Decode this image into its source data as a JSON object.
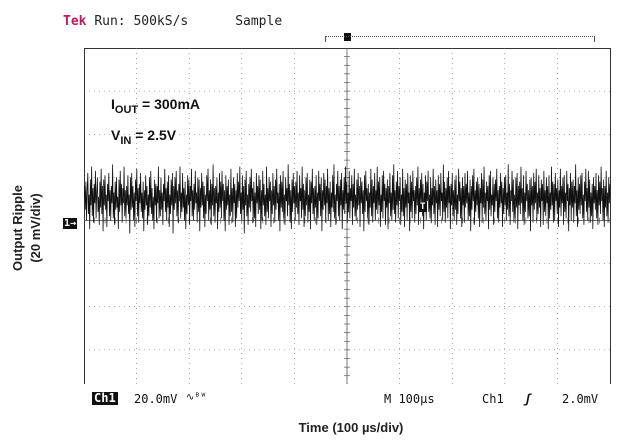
{
  "header": {
    "brand": "Tek",
    "run": "Run: 500kS/s",
    "mode": "Sample"
  },
  "annotations": {
    "iout_label": "I",
    "iout_sub": "OUT",
    "iout_value": " = 300mA",
    "vin_label": "V",
    "vin_sub": "IN",
    "vin_value": " = 2.5V"
  },
  "status": {
    "ch_tag": "Ch1",
    "ch_scale": "20.0mV",
    "bw": "∿ᴮᵂ",
    "timebase": "M 100µs",
    "trig_src": "Ch1",
    "trig_slope": "ʃ",
    "trig_level": "2.0mV"
  },
  "markers": {
    "ch_marker": "1→",
    "trigger_marker": "T"
  },
  "chart_data": {
    "type": "line",
    "xlabel": "Time (100 µs/div)",
    "ylabel_line1": "Output Ripple",
    "ylabel_line2": "(20 mV/div)",
    "x_divisions": 10,
    "y_divisions": 8,
    "x_range_us": [
      0,
      1000
    ],
    "y_range_mV": [
      -80,
      80
    ],
    "offset_divisions": 0.5,
    "series": [
      {
        "values": [
          0,
          6,
          -5,
          8,
          -10,
          4,
          12,
          -7,
          2,
          -14,
          9,
          -3,
          15,
          -8,
          5,
          -11,
          7,
          -2,
          13,
          -9,
          3,
          10,
          -6,
          1,
          -12,
          8,
          -4,
          14,
          -7,
          6,
          -15,
          9,
          -3,
          11,
          -5,
          2,
          -13,
          7,
          -1,
          12,
          -8,
          4,
          -10,
          6,
          -2,
          16,
          -9,
          3,
          -12,
          8,
          -5,
          10,
          -4,
          1,
          -14,
          9,
          -6,
          13,
          -3,
          7,
          -11,
          5,
          -2,
          15,
          -8,
          4,
          -9,
          6,
          -3,
          11,
          -7,
          2,
          -16,
          10,
          -5,
          12,
          -4,
          6,
          -10,
          3,
          -13,
          9,
          -1,
          14,
          -8,
          5,
          -11,
          7,
          -2,
          12,
          -6,
          3,
          -9,
          8,
          -15,
          4,
          -5,
          11,
          -3,
          6,
          -12,
          2,
          -8,
          10,
          -4,
          13,
          -7,
          5,
          -10,
          1,
          -14,
          9,
          -3,
          7,
          -11,
          6,
          -2,
          15,
          -9,
          4,
          -8,
          10,
          -5,
          3,
          -12,
          7,
          -1,
          14,
          -6,
          5,
          -10,
          8,
          -4,
          11,
          -13,
          2,
          -7,
          9,
          -3,
          12,
          -16,
          6,
          -5,
          10,
          -2,
          13,
          -8,
          4,
          -11,
          7,
          -1,
          15,
          -9,
          3,
          -6,
          12,
          -4,
          5,
          -10,
          8,
          -14,
          2,
          -7,
          11,
          -3,
          9,
          -12,
          6,
          -1,
          14,
          -8,
          4,
          -10,
          7,
          -5,
          13,
          -2,
          3,
          -11,
          10,
          -6,
          9,
          -15,
          5,
          -4,
          12,
          -3,
          8,
          -9,
          6,
          -13,
          2,
          -7,
          11,
          -1,
          14,
          -10,
          4,
          -5,
          9,
          -12,
          7,
          -3,
          16,
          -8,
          5,
          -11,
          6,
          -2,
          10,
          -14,
          3,
          -6,
          12,
          -4,
          8,
          -9,
          13,
          -1,
          7,
          -10,
          4,
          -15,
          11,
          -5,
          6,
          -3,
          9,
          -12,
          2,
          -8,
          14,
          -6,
          5,
          -11,
          10,
          -2,
          7,
          -13,
          4,
          -9,
          12,
          -4,
          8,
          -1,
          15,
          -7,
          3,
          -10,
          11,
          -5,
          6,
          -16,
          9,
          -3,
          13,
          -8,
          2,
          -12,
          7,
          -4,
          10,
          -6,
          14,
          -1,
          5,
          -11,
          8,
          -9,
          3,
          -13,
          12,
          -2,
          6,
          -7,
          11,
          -5,
          9,
          -14,
          4,
          -10,
          13,
          -3,
          7,
          -8,
          2,
          -12,
          15,
          -6,
          5,
          -9,
          10,
          -1,
          8,
          -13,
          4,
          -7,
          12,
          -3,
          6,
          -11,
          9,
          -5,
          14,
          -2,
          3,
          -10,
          7,
          -15,
          11,
          -4,
          8,
          -6,
          13,
          -9,
          2,
          -12,
          10,
          -1,
          5,
          -8,
          16,
          -3,
          7,
          -11,
          4,
          -14,
          9,
          -6,
          12,
          -2,
          6,
          -10,
          8,
          -4,
          13,
          -7,
          3,
          -12,
          11,
          -1,
          5,
          -9,
          15,
          -5,
          7,
          -13,
          4,
          -8,
          10,
          -3,
          12,
          -11,
          2,
          -6,
          9,
          -14,
          8,
          -2,
          14,
          -7,
          5,
          -10,
          6,
          -4,
          11,
          -12,
          3,
          -9,
          13,
          -1,
          7,
          -8,
          10,
          -15,
          4,
          -5,
          12,
          -3,
          9,
          -11,
          6,
          -2,
          14,
          -10,
          5,
          -7,
          8,
          -13,
          3,
          -4,
          11,
          -6,
          16,
          -9,
          2,
          -12,
          7,
          -1,
          13,
          -8,
          6,
          -10,
          9,
          -3,
          12,
          -14,
          4,
          -5,
          10,
          -7,
          15,
          -2,
          8,
          -11,
          3,
          -6,
          13,
          -9,
          5,
          -1,
          11,
          -12,
          7,
          -4,
          14,
          -8,
          2,
          -10,
          9,
          -5,
          12,
          -3,
          6,
          -13,
          10,
          -2,
          8,
          -7,
          4,
          -15,
          11,
          -6,
          13,
          -1,
          5,
          -9,
          7,
          -12,
          3,
          -4,
          14,
          -8,
          9,
          -11,
          6,
          -2,
          12,
          -10,
          4,
          -5,
          15,
          -7,
          8,
          -3,
          10,
          -13,
          2,
          -6,
          11,
          -9,
          13,
          -1,
          7,
          -12,
          5,
          -4,
          9,
          -14,
          6,
          -2,
          12,
          -8,
          3,
          -10,
          11,
          -5,
          16,
          -7,
          4,
          -11,
          8,
          -3,
          13,
          -9,
          6,
          -1,
          10,
          -12,
          2,
          -6,
          14,
          -8,
          5,
          -13,
          9,
          -4,
          7,
          -10,
          12,
          -2,
          3,
          -15,
          11,
          -6,
          8,
          -9,
          13,
          -1,
          4,
          -11,
          6,
          -7,
          10,
          -3,
          15,
          -12,
          5,
          -5,
          9,
          -2,
          12,
          -8,
          7,
          -14,
          3,
          -4,
          11,
          -10,
          8,
          -1,
          13,
          -6,
          2,
          -9,
          10,
          -11,
          5,
          -3,
          14,
          -7,
          6,
          -12,
          9,
          -2,
          4,
          -13,
          11,
          -5,
          7,
          -8,
          12,
          -1,
          3,
          -10,
          16,
          -6,
          8,
          -11,
          5,
          -4,
          10,
          -9,
          13,
          -2,
          6,
          -14,
          7,
          -3,
          12,
          -8,
          4,
          -10,
          9,
          -5,
          11,
          -12,
          2,
          -7,
          14,
          -1,
          8,
          -9,
          5,
          -13,
          10,
          -3,
          6,
          -11,
          12,
          -4,
          7,
          -2,
          13,
          -10,
          3,
          -8,
          9,
          -15,
          6,
          -5,
          11,
          -1,
          14,
          -12,
          4,
          -6,
          8,
          -3,
          10,
          -9,
          7,
          -13,
          5,
          -2,
          12,
          -11,
          9,
          -4,
          15,
          -7,
          3,
          -10,
          8,
          -1,
          6,
          -14,
          11,
          -5,
          13,
          -8,
          2,
          -3,
          10,
          -12,
          7,
          -6,
          9,
          -1,
          14,
          -9,
          4,
          -11,
          6,
          -4,
          12,
          -2,
          8,
          -13,
          5,
          -7,
          10,
          -3,
          11,
          -10,
          3,
          -5,
          16,
          -8,
          7,
          -12,
          4,
          -1,
          13,
          -6,
          9,
          -11,
          2,
          -9,
          10,
          -4,
          12,
          -14,
          6,
          -3,
          8,
          -7,
          15,
          -2,
          5,
          -10,
          11,
          -12,
          3,
          -6,
          13,
          -1,
          7,
          -9,
          4,
          -8,
          9,
          -15,
          10,
          -3,
          6,
          -11,
          12,
          -5,
          8,
          -2,
          14,
          -10,
          3,
          -7,
          11,
          -4,
          5,
          -13,
          9,
          -1,
          7,
          -12,
          13,
          -6,
          4,
          -8,
          10,
          -2,
          6,
          -14,
          11,
          -9,
          3,
          -5,
          15,
          -3,
          8,
          -11,
          7,
          -10,
          12,
          -1,
          5,
          -7,
          9,
          -13,
          4,
          -4,
          14,
          -8,
          6,
          -2,
          10,
          -12,
          11,
          -6,
          3,
          -9,
          13,
          -1,
          7,
          -15,
          5,
          -3,
          12,
          -10,
          8,
          -4,
          9,
          -11,
          6,
          -2,
          16,
          -8,
          4,
          -13,
          10,
          -5,
          7,
          -7,
          11,
          -3,
          12,
          -9,
          2,
          -12,
          8,
          -1,
          14,
          -6,
          5,
          -10,
          13,
          -4,
          9,
          -11,
          3,
          -8,
          7,
          -14,
          10,
          -2,
          6,
          -5,
          12,
          -9,
          4,
          -12,
          11,
          -3,
          8,
          -7,
          15,
          -1,
          5,
          -10,
          9,
          -13,
          6,
          -4,
          13,
          -8,
          3,
          -11,
          10,
          -2,
          7
        ]
      }
    ]
  }
}
